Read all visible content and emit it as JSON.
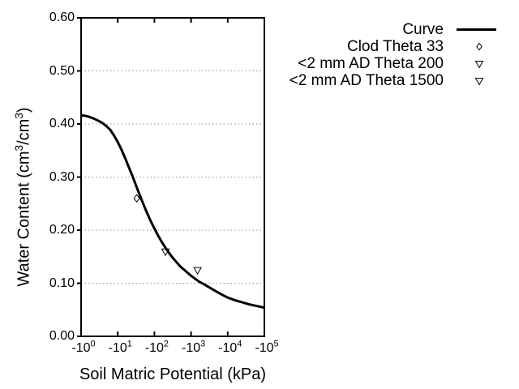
{
  "chart_data": {
    "type": "line",
    "title": "",
    "background_color": "#ffffff",
    "colors": {
      "curve": "#000000",
      "axis": "#000000",
      "grid": "#909090",
      "text": "#000000"
    },
    "x_axis": {
      "title": "Soil Matric Potential (kPa)",
      "scale": "negative log10",
      "tick_labels": [
        "-10^0",
        "-10^1",
        "-10^2",
        "-10^3",
        "-10^4",
        "-10^5"
      ],
      "tick_decades": [
        0,
        1,
        2,
        3,
        4,
        5
      ],
      "range_decades": [
        0,
        5
      ],
      "gridlines": false
    },
    "y_axis": {
      "title": "Water Content (cm^3/cm^3)",
      "tick_labels": [
        "0.00",
        "0.10",
        "0.20",
        "0.30",
        "0.40",
        "0.50",
        "0.60"
      ],
      "tick_values": [
        0.0,
        0.1,
        0.2,
        0.3,
        0.4,
        0.5,
        0.6
      ],
      "range": [
        0.0,
        0.6
      ],
      "gridline_values": [
        0.1,
        0.2,
        0.3,
        0.4,
        0.5
      ],
      "gridline_style": "dotted"
    },
    "legend": {
      "position": "top-right-outside",
      "items": [
        {
          "label": "Curve",
          "marker": "line"
        },
        {
          "label": "Clod Theta 33",
          "marker": "diamond"
        },
        {
          "label": "<2 mm AD Theta 200",
          "marker": "triangle-down"
        },
        {
          "label": "<2 mm AD Theta 1500",
          "marker": "triangle-down"
        }
      ]
    },
    "series": [
      {
        "name": "Curve",
        "type": "line",
        "points_log10abskpa_theta": [
          [
            0.0,
            0.416
          ],
          [
            0.1,
            0.4155
          ],
          [
            0.2,
            0.414
          ],
          [
            0.3,
            0.4115
          ],
          [
            0.4,
            0.4085
          ],
          [
            0.5,
            0.405
          ],
          [
            0.6,
            0.401
          ],
          [
            0.7,
            0.3955
          ],
          [
            0.8,
            0.3885
          ],
          [
            0.9,
            0.378
          ],
          [
            1.0,
            0.366
          ],
          [
            1.1,
            0.352
          ],
          [
            1.2,
            0.336
          ],
          [
            1.3,
            0.319
          ],
          [
            1.4,
            0.302
          ],
          [
            1.5,
            0.284
          ],
          [
            1.6,
            0.266
          ],
          [
            1.7,
            0.249
          ],
          [
            1.8,
            0.232
          ],
          [
            1.9,
            0.217
          ],
          [
            2.0,
            0.203
          ],
          [
            2.1,
            0.19
          ],
          [
            2.2,
            0.178
          ],
          [
            2.3,
            0.167
          ],
          [
            2.4,
            0.157
          ],
          [
            2.5,
            0.148
          ],
          [
            2.6,
            0.14
          ],
          [
            2.7,
            0.132
          ],
          [
            2.8,
            0.126
          ],
          [
            2.9,
            0.12
          ],
          [
            3.0,
            0.114
          ],
          [
            3.1,
            0.109
          ],
          [
            3.2,
            0.104
          ],
          [
            3.3,
            0.1
          ],
          [
            3.4,
            0.096
          ],
          [
            3.5,
            0.092
          ],
          [
            3.6,
            0.088
          ],
          [
            3.7,
            0.084
          ],
          [
            3.8,
            0.08
          ],
          [
            3.9,
            0.0765
          ],
          [
            4.0,
            0.073
          ],
          [
            4.1,
            0.0705
          ],
          [
            4.2,
            0.068
          ],
          [
            4.3,
            0.066
          ],
          [
            4.4,
            0.064
          ],
          [
            4.5,
            0.062
          ],
          [
            4.6,
            0.06
          ],
          [
            4.7,
            0.0585
          ],
          [
            4.8,
            0.057
          ],
          [
            4.9,
            0.0555
          ],
          [
            5.0,
            0.054
          ]
        ]
      },
      {
        "name": "Clod Theta 33",
        "type": "scatter",
        "marker": "diamond",
        "points_kpa_theta": [
          [
            -33,
            0.26
          ]
        ]
      },
      {
        "name": "<2 mm AD Theta 200",
        "type": "scatter",
        "marker": "triangle-down",
        "points_kpa_theta": [
          [
            -200,
            0.16
          ]
        ]
      },
      {
        "name": "<2 mm AD Theta 1500",
        "type": "scatter",
        "marker": "triangle-down",
        "points_kpa_theta": [
          [
            -1500,
            0.125
          ]
        ]
      }
    ]
  }
}
